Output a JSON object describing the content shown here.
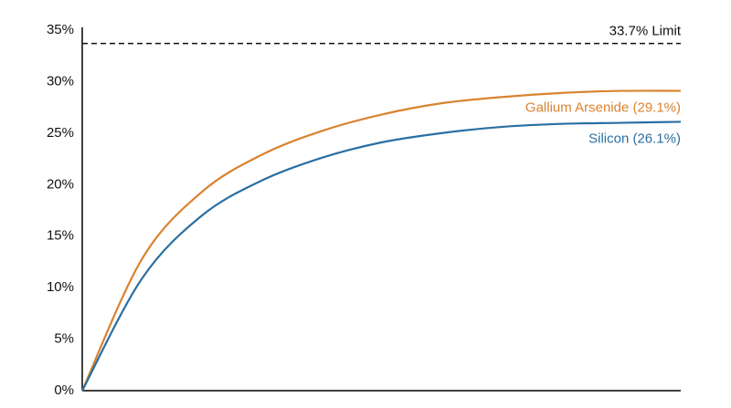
{
  "chart_data": {
    "type": "line",
    "categories": [
      null,
      null,
      null,
      null,
      null,
      null,
      null,
      null,
      null,
      null,
      null
    ],
    "series": [
      {
        "name": "Gallium Arsenide (29.1%)",
        "color": "#d9832f",
        "values": [
          0,
          12.8,
          19.3,
          22.9,
          25.2,
          26.8,
          27.9,
          28.5,
          28.9,
          29.1,
          29.1
        ]
      },
      {
        "name": "Silicon (26.1%)",
        "color": "#2a6fa3",
        "values": [
          0,
          10.9,
          17.0,
          20.4,
          22.6,
          24.1,
          25.0,
          25.6,
          25.9,
          26.0,
          26.1
        ]
      }
    ],
    "limit": {
      "value": 33.7,
      "label": "33.7% Limit"
    },
    "ylim": [
      0,
      35
    ],
    "yticks": [
      {
        "value": 0,
        "label": "0%"
      },
      {
        "value": 5,
        "label": "5%"
      },
      {
        "value": 10,
        "label": "10%"
      },
      {
        "value": 15,
        "label": "15%"
      },
      {
        "value": 20,
        "label": "20%"
      },
      {
        "value": 25,
        "label": "25%"
      },
      {
        "value": 30,
        "label": "30%"
      },
      {
        "value": 35,
        "label": "35%"
      }
    ]
  }
}
